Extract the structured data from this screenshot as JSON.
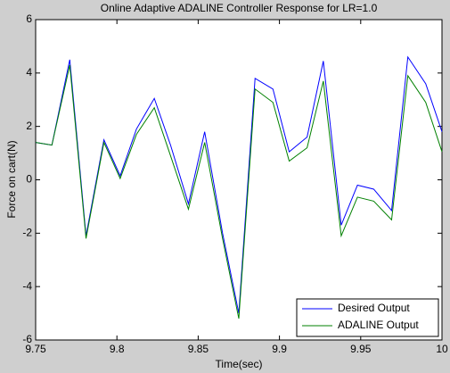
{
  "chart_data": {
    "type": "line",
    "title": "Online Adaptive ADALINE Controller Response for LR=1.0",
    "xlabel": "Time(sec)",
    "ylabel": "Force on cart(N)",
    "x": [
      9.75,
      9.76,
      9.771,
      9.781,
      9.792,
      9.802,
      9.812,
      9.823,
      9.833,
      9.844,
      9.854,
      9.865,
      9.875,
      9.885,
      9.896,
      9.906,
      9.917,
      9.927,
      9.938,
      9.948,
      9.958,
      9.969,
      9.979,
      9.99,
      10
    ],
    "series": [
      {
        "name": "Desired Output",
        "color": "#0000ff",
        "values": [
          1.4,
          1.3,
          4.5,
          -2.1,
          1.5,
          0.15,
          1.9,
          3.05,
          1.3,
          -0.9,
          1.8,
          -2.0,
          -5.0,
          3.8,
          3.4,
          1.05,
          1.6,
          4.45,
          -1.7,
          -0.2,
          -0.35,
          -1.15,
          4.6,
          3.6,
          1.8
        ]
      },
      {
        "name": "ADALINE Output",
        "color": "#008000",
        "values": [
          1.4,
          1.3,
          4.3,
          -2.2,
          1.4,
          0.05,
          1.7,
          2.7,
          0.9,
          -1.1,
          1.4,
          -2.2,
          -5.2,
          3.4,
          2.9,
          0.7,
          1.2,
          3.7,
          -2.1,
          -0.65,
          -0.8,
          -1.5,
          3.9,
          2.9,
          1.05
        ]
      }
    ],
    "xlim": [
      9.75,
      10
    ],
    "xticks": [
      9.75,
      9.8,
      9.85,
      9.9,
      9.95,
      10
    ],
    "ylim": [
      -6,
      6
    ],
    "yticks": [
      -6,
      -4,
      -2,
      0,
      2,
      4,
      6
    ],
    "legend": "lower right"
  }
}
